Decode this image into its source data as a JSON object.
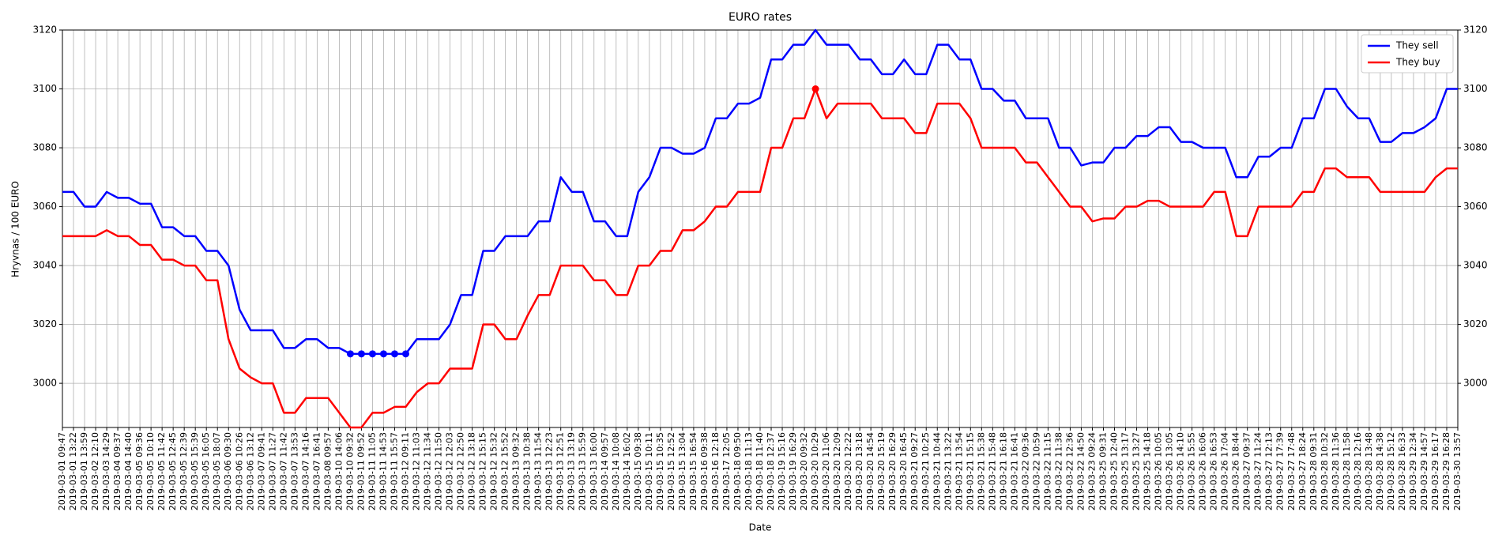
{
  "chart_data": {
    "type": "line",
    "title": "EURO rates",
    "x_label": "Date",
    "y_label": "Hryvnas / 100 EURO",
    "categories": [
      "2019-03-01 09:47",
      "2019-03-01 13:22",
      "2019-03-01 13:59",
      "2019-03-02 12:10",
      "2019-03-03 14:29",
      "2019-03-04 09:37",
      "2019-03-04 14:40",
      "2019-03-05 09:36",
      "2019-03-05 10:10",
      "2019-03-05 11:42",
      "2019-03-05 12:45",
      "2019-03-05 12:39",
      "2019-03-05 15:39",
      "2019-03-05 16:05",
      "2019-03-05 18:07",
      "2019-03-06 09:30",
      "2019-03-06 10:26",
      "2019-03-06 13:12",
      "2019-03-07 09:41",
      "2019-03-07 11:27",
      "2019-03-07 11:42",
      "2019-03-07 13:53",
      "2019-03-07 14:16",
      "2019-03-07 16:41",
      "2019-03-08 09:57",
      "2019-03-10 14:06",
      "2019-03-10 09:32",
      "2019-03-11 09:52",
      "2019-03-11 11:05",
      "2019-03-11 14:53",
      "2019-03-11 15:57",
      "2019-03-12 09:11",
      "2019-03-12 11:03",
      "2019-03-12 11:34",
      "2019-03-12 11:50",
      "2019-03-12 12:03",
      "2019-03-12 12:50",
      "2019-03-12 13:18",
      "2019-03-12 15:15",
      "2019-03-12 15:32",
      "2019-03-12 15:52",
      "2019-03-13 09:32",
      "2019-03-13 10:38",
      "2019-03-13 11:54",
      "2019-03-13 12:23",
      "2019-03-13 12:51",
      "2019-03-13 13:19",
      "2019-03-13 15:59",
      "2019-03-13 16:00",
      "2019-03-14 09:57",
      "2019-03-14 10:08",
      "2019-03-14 16:02",
      "2019-03-15 09:38",
      "2019-03-15 10:11",
      "2019-03-15 10:35",
      "2019-03-15 12:52",
      "2019-03-15 13:04",
      "2019-03-15 16:54",
      "2019-03-16 09:38",
      "2019-03-16 12:18",
      "2019-03-17 12:05",
      "2019-03-18 09:50",
      "2019-03-18 11:13",
      "2019-03-18 11:40",
      "2019-03-18 12:37",
      "2019-03-19 15:16",
      "2019-03-19 16:29",
      "2019-03-20 09:32",
      "2019-03-20 10:29",
      "2019-03-20 11:06",
      "2019-03-20 12:09",
      "2019-03-20 12:22",
      "2019-03-20 13:18",
      "2019-03-20 14:54",
      "2019-03-20 15:19",
      "2019-03-20 16:29",
      "2019-03-20 16:45",
      "2019-03-21 09:27",
      "2019-03-21 10:25",
      "2019-03-21 10:44",
      "2019-03-21 13:22",
      "2019-03-21 13:54",
      "2019-03-21 15:15",
      "2019-03-21 15:38",
      "2019-03-21 15:48",
      "2019-03-21 16:18",
      "2019-03-21 16:41",
      "2019-03-22 09:36",
      "2019-03-22 10:59",
      "2019-03-22 11:15",
      "2019-03-22 11:38",
      "2019-03-22 12:36",
      "2019-03-22 14:50",
      "2019-03-23 09:24",
      "2019-03-25 09:31",
      "2019-03-25 12:40",
      "2019-03-25 13:17",
      "2019-03-25 13:27",
      "2019-03-25 14:18",
      "2019-03-26 10:05",
      "2019-03-26 13:05",
      "2019-03-26 14:10",
      "2019-03-26 15:55",
      "2019-03-26 16:06",
      "2019-03-26 16:53",
      "2019-03-26 17:04",
      "2019-03-26 18:44",
      "2019-03-27 09:37",
      "2019-03-27 11:24",
      "2019-03-27 12:13",
      "2019-03-27 17:39",
      "2019-03-27 17:48",
      "2019-03-27 18:24",
      "2019-03-28 09:31",
      "2019-03-28 10:32",
      "2019-03-28 11:36",
      "2019-03-28 11:58",
      "2019-03-28 12:16",
      "2019-03-28 13:48",
      "2019-03-28 14:38",
      "2019-03-28 15:12",
      "2019-03-28 16:33",
      "2019-03-29 12:34",
      "2019-03-29 14:57",
      "2019-03-29 16:17",
      "2019-03-29 16:28",
      "2019-03-30 13:57"
    ],
    "series": [
      {
        "name": "They sell",
        "color": "#0000ff",
        "highlight": [
          26,
          27,
          28,
          29,
          30,
          31
        ],
        "values": [
          3065,
          3065,
          3060,
          3060,
          3065,
          3063,
          3063,
          3061,
          3061,
          3053,
          3053,
          3050,
          3050,
          3045,
          3045,
          3040,
          3025,
          3018,
          3018,
          3018,
          3012,
          3012,
          3015,
          3015,
          3012,
          3012,
          3010,
          3010,
          3010,
          3010,
          3010,
          3010,
          3015,
          3015,
          3015,
          3020,
          3030,
          3030,
          3045,
          3045,
          3050,
          3050,
          3050,
          3055,
          3055,
          3070,
          3065,
          3065,
          3055,
          3055,
          3050,
          3050,
          3065,
          3070,
          3080,
          3080,
          3078,
          3078,
          3080,
          3090,
          3090,
          3095,
          3095,
          3097,
          3110,
          3110,
          3115,
          3115,
          3120,
          3115,
          3115,
          3115,
          3110,
          3110,
          3105,
          3105,
          3110,
          3105,
          3105,
          3115,
          3115,
          3110,
          3110,
          3100,
          3100,
          3096,
          3096,
          3090,
          3090,
          3090,
          3080,
          3080,
          3074,
          3075,
          3075,
          3080,
          3080,
          3084,
          3084,
          3087,
          3087,
          3082,
          3082,
          3080,
          3080,
          3080,
          3070,
          3070,
          3077,
          3077,
          3080,
          3080,
          3090,
          3090,
          3100,
          3100,
          3094,
          3090,
          3090,
          3082,
          3082,
          3085,
          3085,
          3087,
          3090,
          3100,
          3100
        ]
      },
      {
        "name": "They buy",
        "color": "#ff0000",
        "highlight": [
          68
        ],
        "values": [
          3050,
          3050,
          3050,
          3050,
          3052,
          3050,
          3050,
          3047,
          3047,
          3042,
          3042,
          3040,
          3040,
          3035,
          3035,
          3015,
          3005,
          3002,
          3000,
          3000,
          2990,
          2990,
          2995,
          2995,
          2995,
          2990,
          2985,
          2985,
          2990,
          2990,
          2992,
          2992,
          2997,
          3000,
          3000,
          3005,
          3005,
          3005,
          3020,
          3020,
          3015,
          3015,
          3023,
          3030,
          3030,
          3040,
          3040,
          3040,
          3035,
          3035,
          3030,
          3030,
          3040,
          3040,
          3045,
          3045,
          3052,
          3052,
          3055,
          3060,
          3060,
          3065,
          3065,
          3065,
          3080,
          3080,
          3090,
          3090,
          3100,
          3090,
          3095,
          3095,
          3095,
          3095,
          3090,
          3090,
          3090,
          3085,
          3085,
          3095,
          3095,
          3095,
          3090,
          3080,
          3080,
          3080,
          3080,
          3075,
          3075,
          3070,
          3065,
          3060,
          3060,
          3055,
          3056,
          3056,
          3060,
          3060,
          3062,
          3062,
          3060,
          3060,
          3060,
          3060,
          3065,
          3065,
          3050,
          3050,
          3060,
          3060,
          3060,
          3060,
          3065,
          3065,
          3073,
          3073,
          3070,
          3070,
          3070,
          3065,
          3065,
          3065,
          3065,
          3065,
          3070,
          3073,
          3073
        ]
      }
    ],
    "ylim": [
      2985,
      3120
    ],
    "yticks": [
      3000,
      3020,
      3040,
      3060,
      3080,
      3100,
      3120
    ],
    "grid": true,
    "legend": "upper right",
    "right_axis": true
  }
}
